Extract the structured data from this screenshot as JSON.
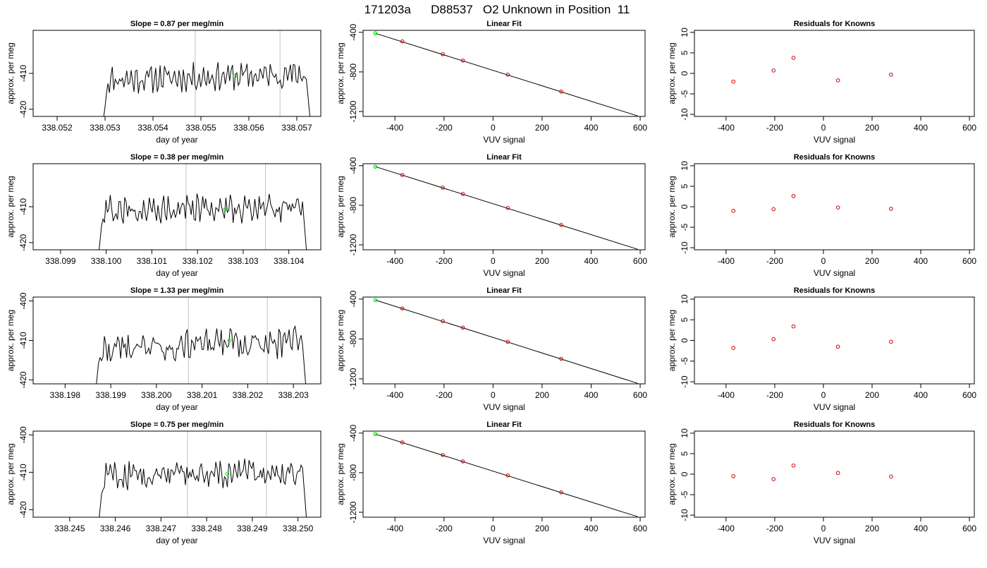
{
  "page_title": "171203a      D88537   O2 Unknown in Position  11",
  "colors": {
    "series": "#000000",
    "unknown_point": "#00ee00",
    "known_point": "#cc0000",
    "marker_line": "#c0c0c0",
    "frame": "#000000"
  },
  "chart_data": [
    {
      "row": 1,
      "col": 1,
      "type": "line",
      "title": "Slope =  0.87  per meg/min",
      "xlabel": "day of year",
      "ylabel": "approx. per meg",
      "xlim": [
        338.0515,
        338.0575
      ],
      "ylim": [
        -422,
        -398
      ],
      "xticks": [
        "338.052",
        "338.053",
        "338.054",
        "338.055",
        "338.056",
        "338.057"
      ],
      "xtick_values": [
        338.052,
        338.053,
        338.054,
        338.055,
        338.056,
        338.057
      ],
      "yticks": [
        "-410",
        "-420"
      ],
      "ytick_values": [
        -410,
        -420
      ],
      "x_start": 338.0528,
      "x_end": 338.0574,
      "drop_to": -440,
      "trace_mean": -411,
      "trace_amp": 3.5,
      "trace_trend": 1.5,
      "seed": 11,
      "vertical_markers": [
        338.05488,
        338.05665
      ],
      "point": {
        "x": 338.0557,
        "y": -410.8
      }
    },
    {
      "row": 1,
      "col": 2,
      "type": "scatter",
      "title": "Linear Fit",
      "xlabel": "VUV signal",
      "ylabel": "approx. per meg",
      "xlim": [
        -530,
        620
      ],
      "ylim": [
        -1250,
        -380
      ],
      "xticks": [
        "-400",
        "-200",
        "0",
        "200",
        "400",
        "600"
      ],
      "xtick_values": [
        -400,
        -200,
        0,
        200,
        400,
        600
      ],
      "yticks": [
        "-400",
        "-800",
        "-1200"
      ],
      "ytick_values": [
        -400,
        -800,
        -1200
      ],
      "fit_line": [
        [
          -480,
          -410
        ],
        [
          590,
          -1245
        ]
      ],
      "unknown": {
        "x": -480,
        "y": -410
      },
      "knowns": [
        [
          -370,
          -492
        ],
        [
          -205,
          -621
        ],
        [
          -123,
          -685
        ],
        [
          60,
          -828
        ],
        [
          278,
          -999
        ]
      ]
    },
    {
      "row": 1,
      "col": 3,
      "type": "scatter",
      "title": "Residuals for Knowns",
      "xlabel": "VUV signal",
      "ylabel": "approx. per meg",
      "xlim": [
        -530,
        620
      ],
      "ylim": [
        -10.5,
        10.5
      ],
      "xticks": [
        "-400",
        "-200",
        "0",
        "200",
        "400",
        "600"
      ],
      "xtick_values": [
        -400,
        -200,
        0,
        200,
        400,
        600
      ],
      "yticks": [
        "10",
        "5",
        "0",
        "-5",
        "-10"
      ],
      "ytick_values": [
        10,
        5,
        0,
        -5,
        -10
      ],
      "knowns": [
        [
          -370,
          -2.0
        ],
        [
          -205,
          0.7
        ],
        [
          -123,
          3.8
        ],
        [
          60,
          -1.7
        ],
        [
          278,
          -0.3
        ]
      ]
    },
    {
      "row": 2,
      "col": 1,
      "type": "line",
      "title": "Slope =  0.38  per meg/min",
      "xlabel": "day of year",
      "ylabel": "approx. per meg",
      "xlim": [
        338.0984,
        338.1047
      ],
      "ylim": [
        -422,
        -398
      ],
      "xticks": [
        "338.099",
        "338.100",
        "338.101",
        "338.102",
        "338.103",
        "338.104"
      ],
      "xtick_values": [
        338.099,
        338.1,
        338.101,
        338.102,
        338.103,
        338.104
      ],
      "yticks": [
        "-410",
        "-420"
      ],
      "ytick_values": [
        -410,
        -420
      ],
      "x_start": 338.0997,
      "x_end": 338.1045,
      "drop_to": -440,
      "trace_mean": -410.5,
      "trace_amp": 3.8,
      "trace_trend": 0.6,
      "seed": 27,
      "vertical_markers": [
        338.10175,
        338.10349
      ],
      "point": {
        "x": 338.1026,
        "y": -410.8
      }
    },
    {
      "row": 2,
      "col": 2,
      "type": "scatter",
      "title": "Linear Fit",
      "xlabel": "VUV signal",
      "ylabel": "approx. per meg",
      "xlim": [
        -530,
        620
      ],
      "ylim": [
        -1250,
        -380
      ],
      "xticks": [
        "-400",
        "-200",
        "0",
        "200",
        "400",
        "600"
      ],
      "xtick_values": [
        -400,
        -200,
        0,
        200,
        400,
        600
      ],
      "yticks": [
        "-400",
        "-800",
        "-1200"
      ],
      "ytick_values": [
        -400,
        -800,
        -1200
      ],
      "fit_line": [
        [
          -480,
          -410
        ],
        [
          590,
          -1245
        ]
      ],
      "unknown": {
        "x": -480,
        "y": -410
      },
      "knowns": [
        [
          -370,
          -494
        ],
        [
          -205,
          -622
        ],
        [
          -123,
          -686
        ],
        [
          60,
          -828
        ],
        [
          278,
          -999
        ]
      ]
    },
    {
      "row": 2,
      "col": 3,
      "type": "scatter",
      "title": "Residuals for Knowns",
      "xlabel": "VUV signal",
      "ylabel": "approx. per meg",
      "xlim": [
        -530,
        620
      ],
      "ylim": [
        -10.5,
        10.5
      ],
      "xticks": [
        "-400",
        "-200",
        "0",
        "200",
        "400",
        "600"
      ],
      "xtick_values": [
        -400,
        -200,
        0,
        200,
        400,
        600
      ],
      "yticks": [
        "10",
        "5",
        "0",
        "-5",
        "-10"
      ],
      "ytick_values": [
        10,
        5,
        0,
        -5,
        -10
      ],
      "knowns": [
        [
          -370,
          -1.0
        ],
        [
          -205,
          -0.6
        ],
        [
          -123,
          2.6
        ],
        [
          60,
          -0.2
        ],
        [
          278,
          -0.5
        ]
      ]
    },
    {
      "row": 3,
      "col": 1,
      "type": "line",
      "title": "Slope =  1.33  per meg/min",
      "xlabel": "day of year",
      "ylabel": "approx. per meg",
      "xlim": [
        338.1973,
        338.2036
      ],
      "ylim": [
        -421,
        -399
      ],
      "xticks": [
        "338.198",
        "338.199",
        "338.200",
        "338.201",
        "338.202",
        "338.203"
      ],
      "xtick_values": [
        338.198,
        338.199,
        338.2,
        338.201,
        338.202,
        338.203
      ],
      "yticks": [
        "-400",
        "-410",
        "-420"
      ],
      "ytick_values": [
        -400,
        -410,
        -420
      ],
      "x_start": 338.1985,
      "x_end": 338.2034,
      "drop_to": -440,
      "trace_mean": -411,
      "trace_amp": 3.8,
      "trace_trend": 2.0,
      "seed": 43,
      "vertical_markers": [
        338.2007,
        338.20243
      ],
      "point": {
        "x": 338.2016,
        "y": -410.0
      }
    },
    {
      "row": 3,
      "col": 2,
      "type": "scatter",
      "title": "Linear Fit",
      "xlabel": "VUV signal",
      "ylabel": "approx. per meg",
      "xlim": [
        -530,
        620
      ],
      "ylim": [
        -1250,
        -380
      ],
      "xticks": [
        "-400",
        "-200",
        "0",
        "200",
        "400",
        "600"
      ],
      "xtick_values": [
        -400,
        -200,
        0,
        200,
        400,
        600
      ],
      "yticks": [
        "-400",
        "-800",
        "-1200"
      ],
      "ytick_values": [
        -400,
        -800,
        -1200
      ],
      "fit_line": [
        [
          -480,
          -410
        ],
        [
          590,
          -1245
        ]
      ],
      "unknown": {
        "x": -480,
        "y": -410
      },
      "knowns": [
        [
          -370,
          -494
        ],
        [
          -205,
          -622
        ],
        [
          -123,
          -686
        ],
        [
          60,
          -828
        ],
        [
          278,
          -999
        ]
      ]
    },
    {
      "row": 3,
      "col": 3,
      "type": "scatter",
      "title": "Residuals for Knowns",
      "xlabel": "VUV signal",
      "ylabel": "approx. per meg",
      "xlim": [
        -530,
        620
      ],
      "ylim": [
        -10.5,
        10.5
      ],
      "xticks": [
        "-400",
        "-200",
        "0",
        "200",
        "400",
        "600"
      ],
      "xtick_values": [
        -400,
        -200,
        0,
        200,
        400,
        600
      ],
      "yticks": [
        "10",
        "5",
        "0",
        "-5",
        "-10"
      ],
      "ytick_values": [
        10,
        5,
        0,
        -5,
        -10
      ],
      "knowns": [
        [
          -370,
          -1.8
        ],
        [
          -205,
          0.3
        ],
        [
          -123,
          3.4
        ],
        [
          60,
          -1.5
        ],
        [
          278,
          -0.3
        ]
      ]
    },
    {
      "row": 4,
      "col": 1,
      "type": "line",
      "title": "Slope =  0.75  per meg/min",
      "xlabel": "day of year",
      "ylabel": "approx. per meg",
      "xlim": [
        338.2442,
        338.2505
      ],
      "ylim": [
        -422,
        -399
      ],
      "xticks": [
        "338.245",
        "338.246",
        "338.247",
        "338.248",
        "338.249",
        "338.250"
      ],
      "xtick_values": [
        338.245,
        338.246,
        338.247,
        338.248,
        338.249,
        338.25
      ],
      "yticks": [
        "-400",
        "-410",
        "-420"
      ],
      "ytick_values": [
        -400,
        -410,
        -420
      ],
      "x_start": 338.2455,
      "x_end": 338.2503,
      "drop_to": -440,
      "trace_mean": -410.3,
      "trace_amp": 3.4,
      "trace_trend": 1.2,
      "seed": 59,
      "vertical_markers": [
        338.24758,
        338.24931
      ],
      "point": {
        "x": 338.24845,
        "y": -410.4
      }
    },
    {
      "row": 4,
      "col": 2,
      "type": "scatter",
      "title": "Linear Fit",
      "xlabel": "VUV signal",
      "ylabel": "approx. per meg",
      "xlim": [
        -530,
        620
      ],
      "ylim": [
        -1250,
        -380
      ],
      "xticks": [
        "-400",
        "-200",
        "0",
        "200",
        "400",
        "600"
      ],
      "xtick_values": [
        -400,
        -200,
        0,
        200,
        400,
        600
      ],
      "yticks": [
        "-400",
        "-800",
        "-1200"
      ],
      "ytick_values": [
        -400,
        -800,
        -1200
      ],
      "fit_line": [
        [
          -480,
          -410
        ],
        [
          590,
          -1245
        ]
      ],
      "unknown": {
        "x": -480,
        "y": -410
      },
      "knowns": [
        [
          -370,
          -494
        ],
        [
          -205,
          -622
        ],
        [
          -123,
          -686
        ],
        [
          60,
          -828
        ],
        [
          278,
          -999
        ]
      ]
    },
    {
      "row": 4,
      "col": 3,
      "type": "scatter",
      "title": "Residuals for Knowns",
      "xlabel": "VUV signal",
      "ylabel": "approx. per meg",
      "xlim": [
        -530,
        620
      ],
      "ylim": [
        -10.5,
        10.5
      ],
      "xticks": [
        "-400",
        "-200",
        "0",
        "200",
        "400",
        "600"
      ],
      "xtick_values": [
        -400,
        -200,
        0,
        200,
        400,
        600
      ],
      "yticks": [
        "10",
        "5",
        "0",
        "-5",
        "-10"
      ],
      "ytick_values": [
        10,
        5,
        0,
        -5,
        -10
      ],
      "knowns": [
        [
          -370,
          -0.5
        ],
        [
          -205,
          -1.2
        ],
        [
          -123,
          2.1
        ],
        [
          60,
          0.3
        ],
        [
          278,
          -0.6
        ]
      ]
    }
  ]
}
